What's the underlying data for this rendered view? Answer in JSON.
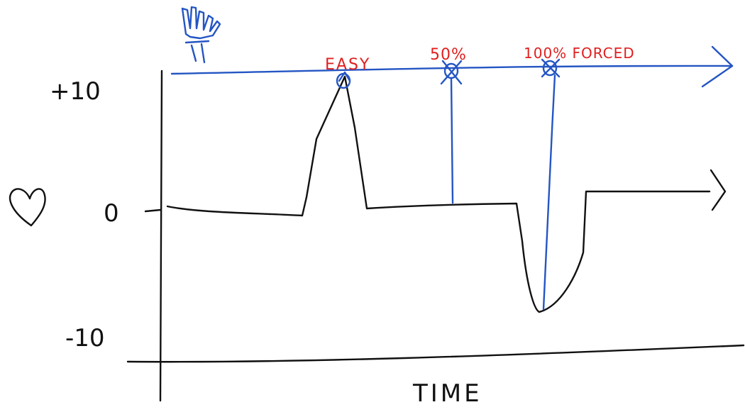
{
  "colors": {
    "ink": "#111111",
    "blue": "#2455c3",
    "red": "#e02020"
  },
  "icons": {
    "hand": "hand-icon",
    "heart": "heart-icon"
  },
  "axis": {
    "x_label": "TIME",
    "y_ticks": [
      "+10",
      "0",
      "-10"
    ]
  },
  "markers": [
    {
      "label": "EASY"
    },
    {
      "label": "50%"
    },
    {
      "label": "100% FORCED"
    }
  ]
}
